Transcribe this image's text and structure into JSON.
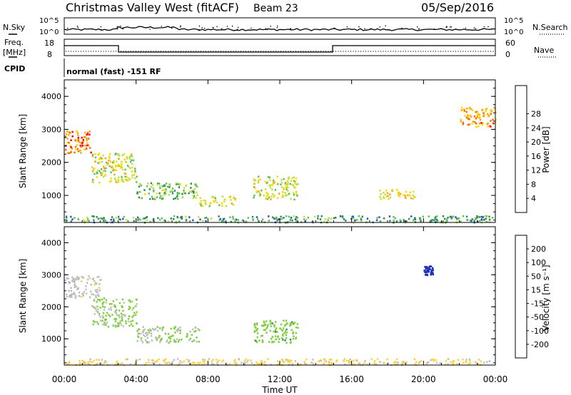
{
  "header": {
    "station": "Christmas Valley West (fitACF)",
    "beam": "Beam 23",
    "date": "05/Sep/2016"
  },
  "top_panels": {
    "nsky_label": "N.Sky",
    "nsearch_label": "N.Search",
    "freq_label_1": "Freq.",
    "freq_label_2": "[MHz]",
    "nave_label": "Nave",
    "cpid_label": "CPID",
    "nsky_ticks": [
      "10^5",
      "10^0"
    ],
    "nsearch_ticks": [
      "10^5",
      "10^0"
    ],
    "freq_ticks": [
      "18",
      "8"
    ],
    "nave_ticks": [
      "60",
      "0"
    ],
    "mode_text": "normal (fast) -151 RF"
  },
  "colors": {
    "power_scale": [
      "#0000ff",
      "#2a52be",
      "#2e8b57",
      "#5fbf5f",
      "#bfe03a",
      "#ffd700",
      "#ffa500",
      "#ff6a00",
      "#ff0000"
    ],
    "velocity_scale": [
      "#1e2fb8",
      "#2e5fa8",
      "#2e8b57",
      "#7fcf3f",
      "#c0c0c0",
      "#ffd040",
      "#ffa500",
      "#ff6000",
      "#ff0000"
    ],
    "ground_scatter": "#bcbcbc"
  },
  "chart_data": [
    {
      "type": "heatmap",
      "name": "Power",
      "xlabel": "",
      "ylabel": "Slant Range [km]",
      "xlim": [
        "00:00",
        "00:00"
      ],
      "ylim": [
        180,
        4500
      ],
      "yticks": [
        "1000",
        "2000",
        "3000",
        "4000"
      ],
      "colorbar": {
        "label": "Power [dB]",
        "ticks": [
          "4",
          "8",
          "12",
          "16",
          "20",
          "24",
          "28"
        ],
        "range": [
          0,
          30
        ]
      },
      "regions": [
        {
          "t": [
            0.0,
            1.5
          ],
          "r": [
            2300,
            3000
          ],
          "value": 6
        },
        {
          "t": [
            1.5,
            4.0
          ],
          "r": [
            1400,
            2300
          ],
          "value": 14
        },
        {
          "t": [
            4.0,
            7.5
          ],
          "r": [
            900,
            1400
          ],
          "value": 18
        },
        {
          "t": [
            7.5,
            9.5
          ],
          "r": [
            700,
            1000
          ],
          "value": 14
        },
        {
          "t": [
            10.5,
            13.0
          ],
          "r": [
            900,
            1600
          ],
          "value": 14
        },
        {
          "t": [
            17.5,
            19.5
          ],
          "r": [
            900,
            1200
          ],
          "value": 12
        },
        {
          "t": [
            22.0,
            24.0
          ],
          "r": [
            3100,
            3700
          ],
          "value": 8
        },
        {
          "t": [
            0.0,
            24.0
          ],
          "r": [
            200,
            400
          ],
          "value": 20
        }
      ]
    },
    {
      "type": "heatmap",
      "name": "Velocity",
      "xlabel": "Time UT",
      "ylabel": "Slant Range [km]",
      "xticks": [
        "00:00",
        "04:00",
        "08:00",
        "12:00",
        "16:00",
        "20:00",
        "00:00"
      ],
      "ylim": [
        180,
        4500
      ],
      "yticks": [
        "1000",
        "2000",
        "3000",
        "4000"
      ],
      "colorbar": {
        "label": "Velocity [m s⁻¹]",
        "ticks": [
          "200",
          "100",
          "50",
          "15",
          "-15",
          "-50",
          "-100",
          "-200"
        ],
        "range": [
          -250,
          250
        ]
      },
      "regions": [
        {
          "t": [
            0.0,
            2.0
          ],
          "r": [
            2300,
            3000
          ],
          "value": 0
        },
        {
          "t": [
            1.5,
            4.0
          ],
          "r": [
            1400,
            2300
          ],
          "value": 40
        },
        {
          "t": [
            4.0,
            7.5
          ],
          "r": [
            900,
            1400
          ],
          "value": 30
        },
        {
          "t": [
            10.5,
            13.0
          ],
          "r": [
            900,
            1600
          ],
          "value": 60
        },
        {
          "t": [
            20.0,
            20.5
          ],
          "r": [
            3000,
            3300
          ],
          "value": 220
        },
        {
          "t": [
            0.0,
            24.0
          ],
          "r": [
            200,
            400
          ],
          "value": -40
        }
      ]
    }
  ]
}
